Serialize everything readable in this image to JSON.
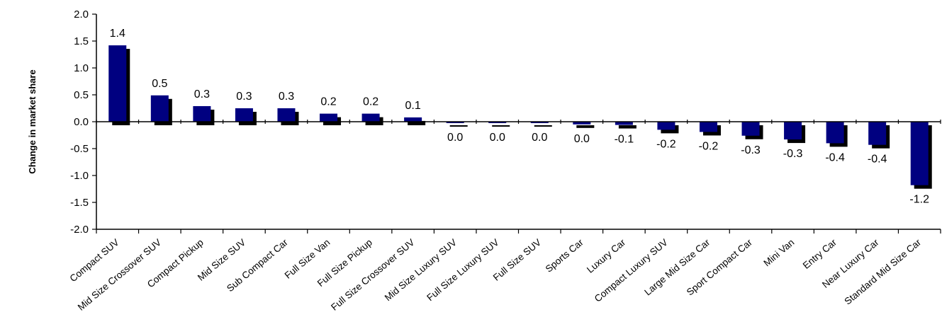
{
  "chart_data": {
    "type": "bar",
    "title": "",
    "xlabel": "",
    "ylabel": "Change in market share",
    "ylim": [
      -2.0,
      2.0
    ],
    "yticks": [
      2.0,
      1.5,
      1.0,
      0.5,
      0.0,
      -0.5,
      -1.0,
      -1.5,
      -2.0
    ],
    "ytick_labels": [
      "2.0",
      "1.5",
      "1.0",
      "0.5",
      "0.0",
      "-0.5",
      "-1.0",
      "-1.5",
      "-2.0"
    ],
    "grid": false,
    "legend": "none",
    "categories": [
      "Compact SUV",
      "Mid Size Crossover SUV",
      "Compact Pickup",
      "Mid Size SUV",
      "Sub Compact Car",
      "Full Size Van",
      "Full Size Pickup",
      "Full Size Crossover SUV",
      "Mid Size Luxury SUV",
      "Full Size Luxury SUV",
      "Full Size SUV",
      "Sports Car",
      "Luxury Car",
      "Compact Luxury SUV",
      "Large Mid Size Car",
      "Sport Compact Car",
      "Mini Van",
      "Entry Car",
      "Near Luxury Car",
      "Standard Mid Size Car"
    ],
    "values": [
      1.42,
      0.49,
      0.29,
      0.25,
      0.25,
      0.15,
      0.15,
      0.08,
      -0.02,
      -0.01,
      -0.02,
      -0.05,
      -0.06,
      -0.15,
      -0.19,
      -0.26,
      -0.33,
      -0.4,
      -0.43,
      -1.18
    ],
    "data_labels": [
      "1.4",
      "0.5",
      "0.3",
      "0.3",
      "0.3",
      "0.2",
      "0.2",
      "0.1",
      "0.0",
      "0.0",
      "0.0",
      "0.0",
      "-0.1",
      "-0.2",
      "-0.2",
      "-0.3",
      "-0.3",
      "-0.4",
      "-0.4",
      "-1.2"
    ],
    "colors": {
      "bar": "#000080",
      "shadow": "#000000",
      "axis": "#000000"
    }
  }
}
